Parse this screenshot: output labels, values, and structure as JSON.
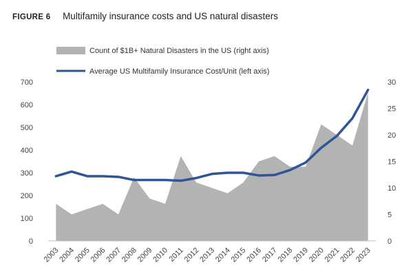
{
  "figure": {
    "label": "FIGURE 6",
    "title": "Multifamily insurance costs and US natural disasters"
  },
  "chart_data": {
    "type": "line",
    "x": [
      "2003",
      "2004",
      "2005",
      "2006",
      "2007",
      "2008",
      "2009",
      "2010",
      "2011",
      "2012",
      "2013",
      "2014",
      "2015",
      "2016",
      "2017",
      "2018",
      "2019",
      "2020",
      "2021",
      "2022",
      "2023"
    ],
    "series": [
      {
        "name": "Average US Multifamily Insurance Cost/Unit (left axis)",
        "kind": "line",
        "axis": "left",
        "color": "#2e5597",
        "values": [
          285,
          305,
          285,
          285,
          282,
          268,
          268,
          268,
          265,
          277,
          295,
          300,
          300,
          288,
          290,
          312,
          345,
          410,
          462,
          540,
          665
        ]
      },
      {
        "name": "Count of $1B+ Natural Disasters in the US (right axis)",
        "kind": "area",
        "axis": "right",
        "color": "#b3b3b3",
        "values": [
          7,
          5,
          6,
          7,
          5,
          12,
          8,
          7,
          16,
          11,
          10,
          9,
          11,
          15,
          16,
          14,
          14,
          22,
          20,
          18,
          28
        ]
      }
    ],
    "left_axis": {
      "min": 0,
      "max": 700,
      "ticks": [
        0,
        100,
        200,
        300,
        400,
        500,
        600,
        700
      ]
    },
    "right_axis": {
      "min": 0,
      "max": 30,
      "ticks": [
        0,
        5,
        10,
        15,
        20,
        25,
        30
      ]
    },
    "grid": false,
    "legend_position": "top-left"
  }
}
